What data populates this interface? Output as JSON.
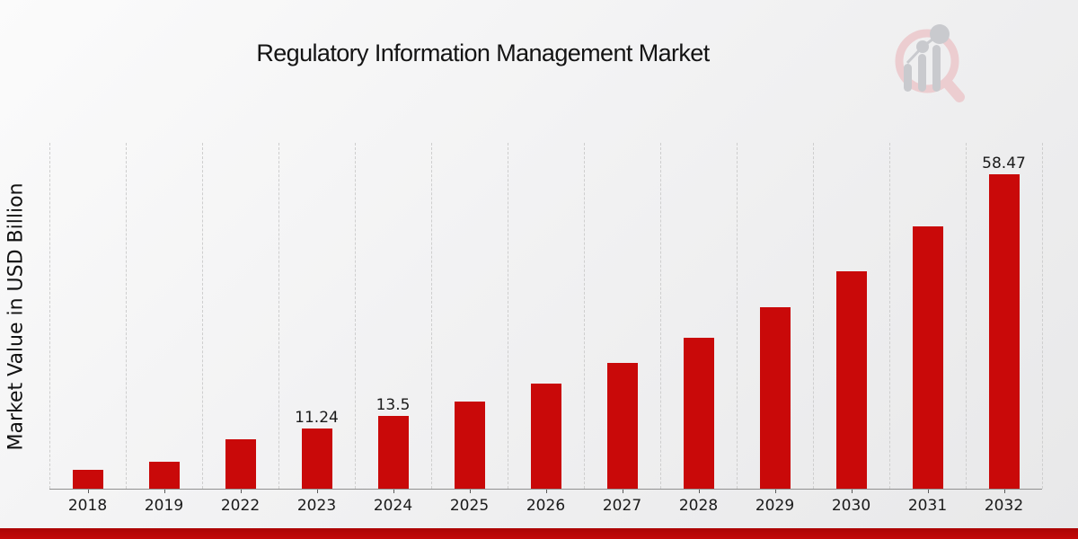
{
  "header": {
    "title": "Regulatory Information Management Market",
    "logo_name": "market-research-watermark-logo"
  },
  "chart_data": {
    "type": "bar",
    "title": "Regulatory Information Management Market",
    "xlabel": "",
    "ylabel": "Market Value in USD Billion",
    "categories": [
      "2018",
      "2019",
      "2022",
      "2023",
      "2024",
      "2025",
      "2026",
      "2027",
      "2028",
      "2029",
      "2030",
      "2031",
      "2032"
    ],
    "values": [
      3.5,
      5.0,
      9.2,
      11.24,
      13.5,
      16.2,
      19.5,
      23.4,
      28.1,
      33.7,
      40.5,
      48.7,
      58.47
    ],
    "point_labels": [
      "",
      "",
      "",
      "11.24",
      "13.5",
      "",
      "",
      "",
      "",
      "",
      "",
      "",
      "58.47"
    ],
    "ylim": [
      0,
      64.3
    ],
    "grid": "vertical-dashed",
    "legend": "none",
    "bar_color": "#c90909",
    "accent_color": "#b50606"
  }
}
